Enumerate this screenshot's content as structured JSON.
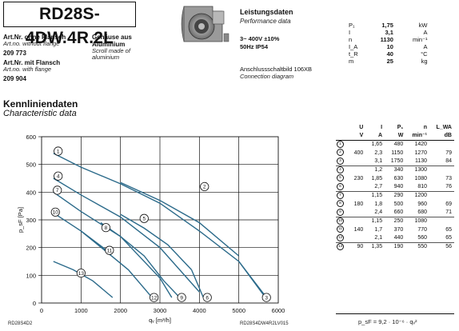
{
  "header": {
    "model": "RD28S-4DW.4R.2L",
    "art_no_without_flange_label": "Art.Nr. ohne Flansch",
    "art_no_without_flange_label_en": "Art.no. without flange",
    "art_no_without_flange": "209 773",
    "art_no_with_flange_label": "Art.Nr. mit Flansch",
    "art_no_with_flange_label_en": "Art.no. with flange",
    "art_no_with_flange": "209 904",
    "housing_label": "Gehäuse aus",
    "housing_material": "Aluminium",
    "housing_label_en": "Scroll made of",
    "housing_material_en": "aluminium"
  },
  "performance": {
    "title": "Leistungsdaten",
    "subtitle": "Performance data",
    "voltage": "3~ 400V ±10%",
    "frequency": "50Hz  IP54",
    "diagram_label": "Anschlussschaltbild 106XB",
    "diagram_label_en": "Connection diagram",
    "rows": [
      {
        "sym": "P₁",
        "val": "1,75",
        "unit": "kW"
      },
      {
        "sym": "I",
        "val": "3,1",
        "unit": "A"
      },
      {
        "sym": "n",
        "val": "1130",
        "unit": "min⁻¹"
      },
      {
        "sym": "I_A",
        "val": "10",
        "unit": "A"
      },
      {
        "sym": "t_R",
        "val": "40",
        "unit": "°C"
      },
      {
        "sym": "m",
        "val": "25",
        "unit": "kg"
      }
    ]
  },
  "section": {
    "title": "Kennliniendaten",
    "subtitle": "Characteristic data"
  },
  "chart_data": {
    "type": "line",
    "xlabel": "qᵥ [m³/h]",
    "ylabel": "p_sF [Pa]",
    "xlim": [
      0,
      6000
    ],
    "ylim": [
      0,
      600
    ],
    "xticks": [
      "0",
      "1000",
      "2000",
      "3000",
      "4000",
      "5000",
      "6000"
    ],
    "yticks": [
      "0",
      "100",
      "200",
      "300",
      "400",
      "500",
      "600"
    ],
    "grid": true,
    "series": [
      {
        "name": "1",
        "points": [
          [
            300,
            540
          ],
          [
            1000,
            490
          ],
          [
            2000,
            430
          ],
          [
            3000,
            360
          ],
          [
            4000,
            260
          ],
          [
            5000,
            150
          ],
          [
            5700,
            15
          ]
        ],
        "label_at": [
          420,
          548
        ]
      },
      {
        "name": "2",
        "points": [
          [
            2000,
            435
          ],
          [
            3000,
            370
          ],
          [
            4000,
            290
          ],
          [
            5000,
            170
          ]
        ],
        "label_at": [
          4130,
          420
        ]
      },
      {
        "name": "3",
        "points": [
          [
            5000,
            150
          ],
          [
            5700,
            20
          ]
        ],
        "label_at": [
          5700,
          20
        ]
      },
      {
        "name": "4",
        "points": [
          [
            300,
            450
          ],
          [
            1000,
            390
          ],
          [
            2000,
            310
          ],
          [
            3000,
            200
          ],
          [
            4000,
            40
          ]
        ],
        "label_at": [
          420,
          458
        ]
      },
      {
        "name": "5",
        "points": [
          [
            2000,
            320
          ],
          [
            2600,
            270
          ],
          [
            3200,
            210
          ],
          [
            3800,
            120
          ]
        ],
        "label_at": [
          2600,
          305
        ]
      },
      {
        "name": "6",
        "points": [
          [
            3800,
            120
          ],
          [
            4100,
            20
          ]
        ],
        "label_at": [
          4200,
          20
        ]
      },
      {
        "name": "7",
        "points": [
          [
            300,
            400
          ],
          [
            1000,
            330
          ],
          [
            2000,
            240
          ],
          [
            3000,
            90
          ],
          [
            3300,
            20
          ]
        ],
        "label_at": [
          400,
          407
        ]
      },
      {
        "name": "8",
        "points": [
          [
            1500,
            290
          ],
          [
            2000,
            240
          ],
          [
            2600,
            170
          ],
          [
            3100,
            80
          ]
        ],
        "label_at": [
          1630,
          272
        ]
      },
      {
        "name": "9",
        "points": [
          [
            3100,
            80
          ],
          [
            3500,
            20
          ]
        ],
        "label_at": [
          3550,
          20
        ]
      },
      {
        "name": "10",
        "points": [
          [
            300,
            325
          ],
          [
            1000,
            260
          ],
          [
            1600,
            190
          ],
          [
            2200,
            120
          ],
          [
            2800,
            20
          ]
        ],
        "label_at": [
          350,
          328
        ]
      },
      {
        "name": "11",
        "points": [
          [
            1000,
            260
          ],
          [
            1700,
            185
          ]
        ],
        "label_at": [
          1720,
          190
        ]
      },
      {
        "name": "12",
        "points": [
          [
            2800,
            20
          ]
        ],
        "label_at": [
          2850,
          20
        ]
      },
      {
        "name": "13",
        "points": [
          [
            300,
            150
          ],
          [
            800,
            120
          ],
          [
            1300,
            80
          ],
          [
            1800,
            20
          ]
        ],
        "label_at": [
          1000,
          108
        ]
      }
    ]
  },
  "chart_footer": {
    "left": "RD28S4D2",
    "right": "RD28S4DW4R2LV015"
  },
  "value_table": {
    "headers": [
      "",
      "U",
      "I",
      "P₁",
      "n",
      "L_WA"
    ],
    "units": [
      "",
      "V",
      "A",
      "W",
      "min⁻¹",
      "dB"
    ],
    "rows": [
      {
        "c": "1",
        "U": "",
        "I": "1,65",
        "P": "480",
        "n": "1420",
        "L": ""
      },
      {
        "c": "2",
        "U": "400",
        "I": "2,3",
        "P": "1150",
        "n": "1270",
        "L": "79"
      },
      {
        "c": "3",
        "U": "",
        "I": "3,1",
        "P": "1750",
        "n": "1130",
        "L": "84"
      },
      {
        "c": "4",
        "U": "",
        "I": "1,2",
        "P": "340",
        "n": "1300",
        "L": ""
      },
      {
        "c": "5",
        "U": "230",
        "I": "1,85",
        "P": "630",
        "n": "1080",
        "L": "73"
      },
      {
        "c": "6",
        "U": "",
        "I": "2,7",
        "P": "940",
        "n": "810",
        "L": "76"
      },
      {
        "c": "7",
        "U": "",
        "I": "1,15",
        "P": "290",
        "n": "1200",
        "L": ""
      },
      {
        "c": "8",
        "U": "180",
        "I": "1,8",
        "P": "500",
        "n": "960",
        "L": "69"
      },
      {
        "c": "9",
        "U": "",
        "I": "2,4",
        "P": "660",
        "n": "680",
        "L": "71"
      },
      {
        "c": "10",
        "U": "",
        "I": "1,15",
        "P": "250",
        "n": "1080",
        "L": ""
      },
      {
        "c": "11",
        "U": "140",
        "I": "1,7",
        "P": "370",
        "n": "770",
        "L": "65"
      },
      {
        "c": "12",
        "U": "",
        "I": "2,1",
        "P": "440",
        "n": "560",
        "L": "65"
      },
      {
        "c": "13",
        "U": "90",
        "I": "1,35",
        "P": "190",
        "n": "550",
        "L": "56"
      }
    ],
    "formula": "p_sF = 9,2 · 10⁻⁶ · qᵥ²"
  },
  "icons": {
    "product_image": "blower-fan-icon"
  }
}
